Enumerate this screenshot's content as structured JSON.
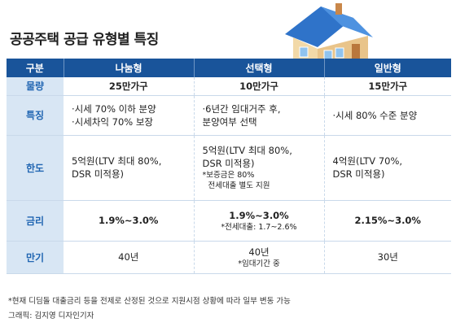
{
  "title": "공공주택 공급 유형별 특징",
  "headers": [
    "구분",
    "나눔형",
    "선택형",
    "일반형"
  ],
  "rows": {
    "supply": {
      "label": "물량",
      "c1": "25만가구",
      "c2": "10만가구",
      "c3": "15만가구"
    },
    "features": {
      "label": "특징",
      "c1_l1": "·시세 70% 이하 분양",
      "c1_l2": "·시세차익 70% 보장",
      "c2_l1": "·6년간 임대거주 후,",
      "c2_l2": "분양여부 선택",
      "c3_l1": "·시세 80% 수준 분양"
    },
    "limit": {
      "label": "한도",
      "c1_l1": "5억원(LTV 최대 80%,",
      "c1_l2": "DSR 미적용)",
      "c2_l1": "5억원(LTV 최대 80%,",
      "c2_l2": "DSR 미적용)",
      "c2_n1": "*보증금은 80%",
      "c2_n2": "전세대출 별도 지원",
      "c3_l1": "4억원(LTV 70%,",
      "c3_l2": "DSR 미적용)"
    },
    "rate": {
      "label": "금리",
      "c1": "1.9%~3.0%",
      "c2": "1.9%~3.0%",
      "c2_note": "*전세대출: 1.7~2.6%",
      "c3": "2.15%~3.0%"
    },
    "term": {
      "label": "만기",
      "c1": "40년",
      "c2": "40년",
      "c2_note": "*임대기간 중",
      "c3": "30년"
    }
  },
  "footnote": "*현재 디딤돌 대출금리 등을 전제로 산정된 것으로 지원시점 상황에 따라 일부 변동 가능",
  "credit": "그래픽: 김지영 디자인기자",
  "colors": {
    "header_bg": "#19549a",
    "label_bg": "#d8e6f4",
    "label_text": "#2166b2",
    "divider": "#c9d9ea"
  }
}
